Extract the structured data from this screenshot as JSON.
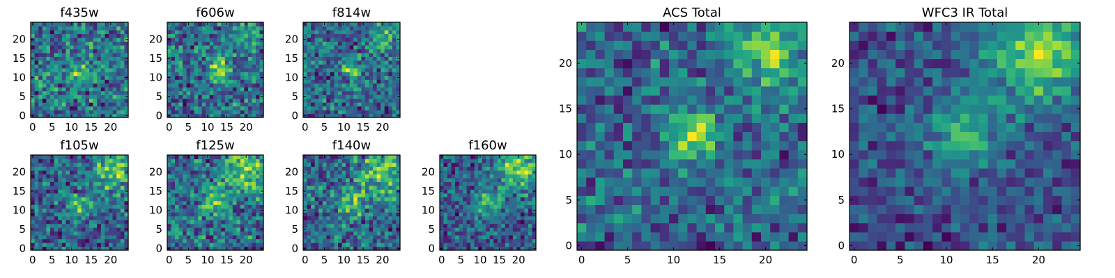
{
  "chart_data": [
    {
      "type": "heatmap",
      "title": "f435w",
      "x_ticks": [
        "0",
        "5",
        "10",
        "15",
        "20"
      ],
      "y_ticks": [
        "0",
        "5",
        "10",
        "15",
        "20"
      ],
      "xlim": [
        0,
        25
      ],
      "ylim": [
        0,
        25
      ],
      "grid_size": 25,
      "seed": 11,
      "blobs": [
        {
          "x": 12,
          "y": 11,
          "strength": 0.45,
          "sigma": 2
        }
      ],
      "noise": 0.9,
      "colormap": "viridis"
    },
    {
      "type": "heatmap",
      "title": "f606w",
      "x_ticks": [
        "0",
        "5",
        "10",
        "15",
        "20"
      ],
      "y_ticks": [
        "0",
        "5",
        "10",
        "15",
        "20"
      ],
      "xlim": [
        0,
        25
      ],
      "ylim": [
        0,
        25
      ],
      "grid_size": 25,
      "seed": 23,
      "blobs": [
        {
          "x": 13,
          "y": 12,
          "strength": 0.6,
          "sigma": 2
        },
        {
          "x": 20,
          "y": 22,
          "strength": 0.3,
          "sigma": 2.5
        }
      ],
      "noise": 0.75,
      "colormap": "viridis"
    },
    {
      "type": "heatmap",
      "title": "f814w",
      "x_ticks": [
        "0",
        "5",
        "10",
        "15",
        "20"
      ],
      "y_ticks": [
        "0",
        "5",
        "10",
        "15",
        "20"
      ],
      "xlim": [
        0,
        25
      ],
      "ylim": [
        0,
        25
      ],
      "grid_size": 25,
      "seed": 37,
      "blobs": [
        {
          "x": 12,
          "y": 12,
          "strength": 0.55,
          "sigma": 2
        },
        {
          "x": 20,
          "y": 21,
          "strength": 0.4,
          "sigma": 3
        }
      ],
      "noise": 0.75,
      "colormap": "viridis"
    },
    {
      "type": "heatmap",
      "title": "f105w",
      "x_ticks": [
        "0",
        "5",
        "10",
        "15",
        "20"
      ],
      "y_ticks": [
        "0",
        "5",
        "10",
        "15",
        "20"
      ],
      "xlim": [
        0,
        25
      ],
      "ylim": [
        0,
        25
      ],
      "grid_size": 25,
      "seed": 41,
      "blobs": [
        {
          "x": 12,
          "y": 11,
          "strength": 0.45,
          "sigma": 2
        },
        {
          "x": 20,
          "y": 20,
          "strength": 0.55,
          "sigma": 3.5
        }
      ],
      "noise": 0.6,
      "colormap": "viridis"
    },
    {
      "type": "heatmap",
      "title": "f125w",
      "x_ticks": [
        "0",
        "5",
        "10",
        "15",
        "20"
      ],
      "y_ticks": [
        "0",
        "5",
        "10",
        "15",
        "20"
      ],
      "xlim": [
        0,
        25
      ],
      "ylim": [
        0,
        25
      ],
      "grid_size": 25,
      "seed": 53,
      "blobs": [
        {
          "x": 12,
          "y": 12,
          "strength": 0.4,
          "sigma": 2.5
        },
        {
          "x": 20,
          "y": 20,
          "strength": 0.5,
          "sigma": 4
        }
      ],
      "noise": 0.6,
      "colormap": "viridis"
    },
    {
      "type": "heatmap",
      "title": "f140w",
      "x_ticks": [
        "0",
        "5",
        "10",
        "15",
        "20"
      ],
      "y_ticks": [
        "0",
        "5",
        "10",
        "15",
        "20"
      ],
      "xlim": [
        0,
        25
      ],
      "ylim": [
        0,
        25
      ],
      "grid_size": 25,
      "seed": 67,
      "blobs": [
        {
          "x": 12,
          "y": 12,
          "strength": 0.45,
          "sigma": 2.5
        },
        {
          "x": 20,
          "y": 20,
          "strength": 0.55,
          "sigma": 4
        }
      ],
      "noise": 0.6,
      "colormap": "viridis"
    },
    {
      "type": "heatmap",
      "title": "f160w",
      "x_ticks": [
        "0",
        "5",
        "10",
        "15",
        "20"
      ],
      "y_ticks": [
        "0",
        "5",
        "10",
        "15",
        "20"
      ],
      "xlim": [
        0,
        25
      ],
      "ylim": [
        0,
        25
      ],
      "grid_size": 25,
      "seed": 79,
      "blobs": [
        {
          "x": 12,
          "y": 12,
          "strength": 0.5,
          "sigma": 2.5
        },
        {
          "x": 20,
          "y": 21,
          "strength": 0.6,
          "sigma": 4
        }
      ],
      "noise": 0.55,
      "colormap": "viridis"
    },
    {
      "type": "heatmap",
      "title": "ACS Total",
      "x_ticks": [
        "0",
        "5",
        "10",
        "15",
        "20"
      ],
      "y_ticks": [
        "0",
        "5",
        "10",
        "15",
        "20"
      ],
      "xlim": [
        0,
        25
      ],
      "ylim": [
        0,
        25
      ],
      "grid_size": 25,
      "seed": 97,
      "blobs": [
        {
          "x": 12,
          "y": 12,
          "strength": 0.75,
          "sigma": 1.8
        },
        {
          "x": 20,
          "y": 21,
          "strength": 0.55,
          "sigma": 2.8
        }
      ],
      "noise": 0.55,
      "colormap": "viridis"
    },
    {
      "type": "heatmap",
      "title": "WFC3 IR Total",
      "x_ticks": [
        "0",
        "5",
        "10",
        "15",
        "20"
      ],
      "y_ticks": [
        "0",
        "5",
        "10",
        "15",
        "20"
      ],
      "xlim": [
        0,
        25
      ],
      "ylim": [
        0,
        25
      ],
      "grid_size": 25,
      "seed": 113,
      "blobs": [
        {
          "x": 12,
          "y": 12,
          "strength": 0.6,
          "sigma": 2.5
        },
        {
          "x": 20,
          "y": 21,
          "strength": 0.75,
          "sigma": 3.8
        }
      ],
      "noise": 0.45,
      "colormap": "viridis"
    }
  ]
}
